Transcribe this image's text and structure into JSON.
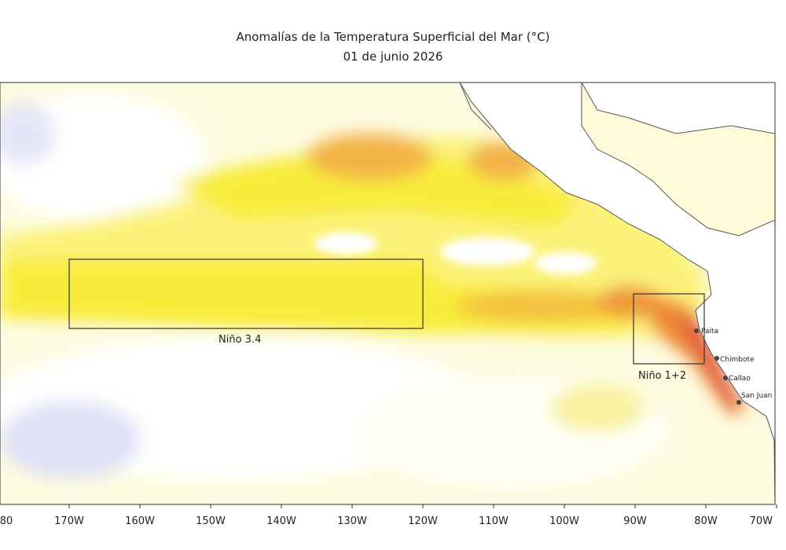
{
  "header": {
    "title": "Anomalías de la Temperatura Superficial del Mar (°C)",
    "date": "01 de junio 2026"
  },
  "axis": {
    "labels": [
      "80",
      "170W",
      "160W",
      "150W",
      "140W",
      "130W",
      "120W",
      "110W",
      "100W",
      "90W",
      "80W",
      "70W"
    ]
  },
  "regions": [
    {
      "label": "Niño 3.4"
    },
    {
      "label": "Niño 1+2"
    }
  ],
  "cities": [
    {
      "label": "Paita"
    },
    {
      "label": "Chimbote"
    },
    {
      "label": "Callao"
    },
    {
      "label": "San Juan"
    }
  ]
}
